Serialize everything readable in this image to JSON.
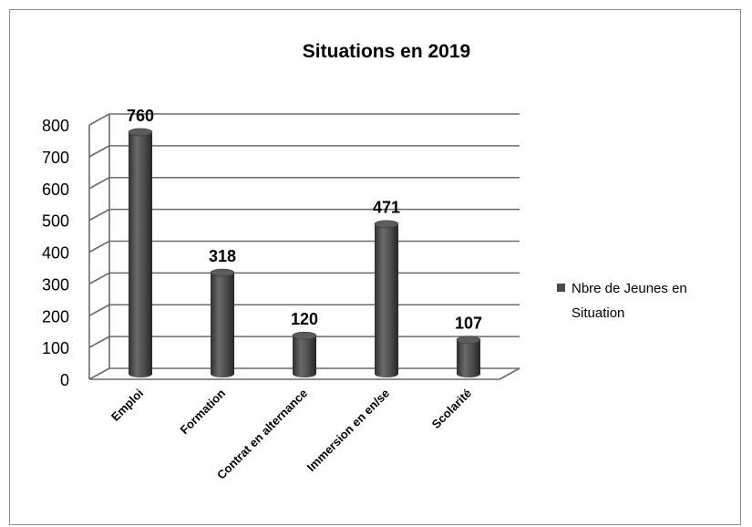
{
  "chart_data": {
    "type": "bar",
    "title": "Situations en 2019",
    "categories": [
      "Emploi",
      "Formation",
      "Contrat en alternance",
      "Immersion en en/se",
      "Scolarité"
    ],
    "series": [
      {
        "name": "Nbre de Jeunes en Situation",
        "values": [
          760,
          318,
          120,
          471,
          107
        ]
      }
    ],
    "legend_lines": [
      "Nbre de Jeunes en",
      "Situation"
    ],
    "data_labels": [
      "760",
      "318",
      "120",
      "471",
      "107"
    ],
    "ylim": [
      0,
      800
    ],
    "yticks": [
      "0",
      "100",
      "200",
      "300",
      "400",
      "500",
      "600",
      "700",
      "800"
    ],
    "grid": true,
    "legend_position": "right",
    "bar_color": "#4a4a4a",
    "grid_color": "#6b6b6b"
  }
}
